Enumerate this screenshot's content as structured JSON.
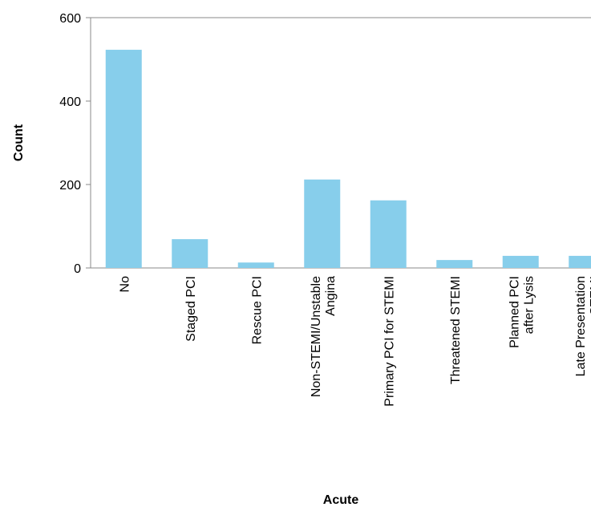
{
  "chart_data": {
    "type": "bar",
    "x_label": "Acute",
    "y_label": "Count",
    "categories": [
      "No",
      "Staged PCI",
      "Rescue PCI",
      "Non-STEMI/Unstable\nAngina",
      "Primary PCI for STEMI",
      "Threatened STEMI",
      "Planned PCI\nafter Lysis",
      "Late Presentation\nSTEMI"
    ],
    "values": [
      523,
      69,
      13,
      212,
      162,
      19,
      29,
      29
    ],
    "color": "#87ceeb",
    "ylim": [
      0,
      600
    ],
    "yticks": [
      0,
      200,
      400,
      600
    ],
    "grid": false
  }
}
